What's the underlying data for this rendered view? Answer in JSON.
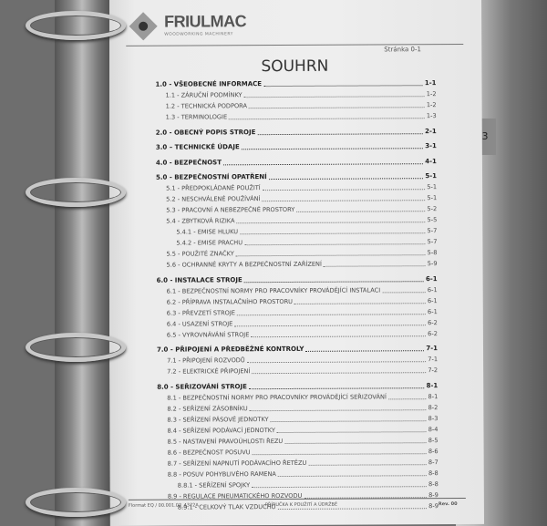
{
  "side_tab": "3",
  "header": {
    "brand": "FRIULMAC",
    "brand_subtitle": "WOODWORKING MACHINERY",
    "page_label": "Stránka 0-1"
  },
  "title": "SOUHRN",
  "toc": [
    {
      "level": 0,
      "text": "1.0 - VŠEOBECNÉ INFORMACE",
      "page": "1-1"
    },
    {
      "level": 1,
      "text": "1.1 - ZÁRUČNÍ PODMÍNKY",
      "page": "1-2"
    },
    {
      "level": 1,
      "text": "1.2 - TECHNICKÁ PODPORA",
      "page": "1-2"
    },
    {
      "level": 1,
      "text": "1.3 - TERMINOLOGIE",
      "page": "1-3"
    },
    {
      "level": 0,
      "text": "2.0 - OBECNÝ POPIS STROJE",
      "page": "2-1"
    },
    {
      "level": 0,
      "text": "3.0 – TECHNICKÉ ÚDAJE",
      "page": "3-1"
    },
    {
      "level": 0,
      "text": "4.0 - BEZPEČNOST",
      "page": "4-1"
    },
    {
      "level": 0,
      "text": "5.0 - BEZPEČNOSTNÍ OPATŘENÍ",
      "page": "5-1"
    },
    {
      "level": 1,
      "text": "5.1 - PŘEDPOKLÁDANÉ POUŽITÍ",
      "page": "5-1"
    },
    {
      "level": 1,
      "text": "5.2 - NESCHVÁLENÉ POUŽÍVÁNÍ",
      "page": "5-1"
    },
    {
      "level": 1,
      "text": "5.3 - PRACOVNÍ A NEBEZPEČNÉ PROSTORY",
      "page": "5-2"
    },
    {
      "level": 1,
      "text": "5.4 - ZBYTKOVÁ RIZIKA",
      "page": "5-5"
    },
    {
      "level": 2,
      "text": "5.4.1 - EMISE HLUKU",
      "page": "5-7"
    },
    {
      "level": 2,
      "text": "5.4.2 - EMISE PRACHU",
      "page": "5-7"
    },
    {
      "level": 1,
      "text": "5.5 - POUŽITÉ ZNAČKY",
      "page": "5-8"
    },
    {
      "level": 1,
      "text": "5.6 - OCHRANNÉ KRYTY A BEZPEČNOSTNÍ ZAŘÍZENÍ",
      "page": "5-9"
    },
    {
      "level": 0,
      "text": "6.0 - INSTALACE STROJE",
      "page": "6-1"
    },
    {
      "level": 1,
      "text": "6.1 - BEZPEČNOSTNÍ NORMY PRO PRACOVNÍKY PROVÁDĚJÍCÍ INSTALACI",
      "page": "6-1"
    },
    {
      "level": 1,
      "text": "6.2 - PŘÍPRAVA INSTALAČNÍHO PROSTORU",
      "page": "6-1"
    },
    {
      "level": 1,
      "text": "6.3 - PŘEVZETÍ STROJE",
      "page": "6-1"
    },
    {
      "level": 1,
      "text": "6.4 - USAZENÍ STROJE",
      "page": "6-2"
    },
    {
      "level": 1,
      "text": "6.5 - VYROVNÁVÁNÍ STROJE",
      "page": "6-2"
    },
    {
      "level": 0,
      "text": "7.0 - PŘIPOJENÍ A PŘEDBĚŽNÉ KONTROLY",
      "page": "7-1"
    },
    {
      "level": 1,
      "text": "7.1 - PŘIPOJENÍ ROZVODŮ",
      "page": "7-1"
    },
    {
      "level": 1,
      "text": "7.2 - ELEKTRICKÉ PŘIPOJENÍ",
      "page": "7-2"
    },
    {
      "level": 0,
      "text": "8.0 - SEŘIZOVÁNÍ STROJE",
      "page": "8-1"
    },
    {
      "level": 1,
      "text": "8.1 - BEZPEČNOSTNÍ NORMY PRO PRACOVNÍKY PROVÁDĚJÍCÍ SEŘIZOVÁNÍ",
      "page": "8-1"
    },
    {
      "level": 1,
      "text": "8.2 - SEŘÍZENÍ ZÁSOBNÍKU",
      "page": "8-2"
    },
    {
      "level": 1,
      "text": "8.3 - SEŘÍZENÍ PÁSOVÉ JEDNOTKY",
      "page": "8-3"
    },
    {
      "level": 1,
      "text": "8.4 - SEŘÍZENÍ PODÁVACÍ JEDNOTKY",
      "page": "8-4"
    },
    {
      "level": 1,
      "text": "8.5 - NASTAVENÍ PRAVOÚHLOSTI ŘEZU",
      "page": "8-5"
    },
    {
      "level": 1,
      "text": "8.6 - BEZPEČNOST POSUVU",
      "page": "8-6"
    },
    {
      "level": 1,
      "text": "8.7 - SEŘÍZENÍ NAPNUTÍ PODÁVACÍHO ŘETĚZU",
      "page": "8-7"
    },
    {
      "level": 1,
      "text": "8.8 - POSUV POHYBLIVÉHO RAMENA",
      "page": "8-8"
    },
    {
      "level": 2,
      "text": "8.8.1 - SEŘÍZENÍ SPOJKY",
      "page": "8-8"
    },
    {
      "level": 1,
      "text": "8.9 - REGULACE PNEUMATICKÉHO ROZVODU",
      "page": "8-9"
    },
    {
      "level": 2,
      "text": "8.9.1 - CELKOVÝ TLAK VZDUCHU",
      "page": "8-9"
    }
  ],
  "footer": {
    "doc_code": "Flormat EQ / 00.001.02_4372A",
    "manual_title": "PŘÍRUČKA K POUŽITÍ A ÚDRŽBĚ",
    "revision": "Rev. 00"
  }
}
